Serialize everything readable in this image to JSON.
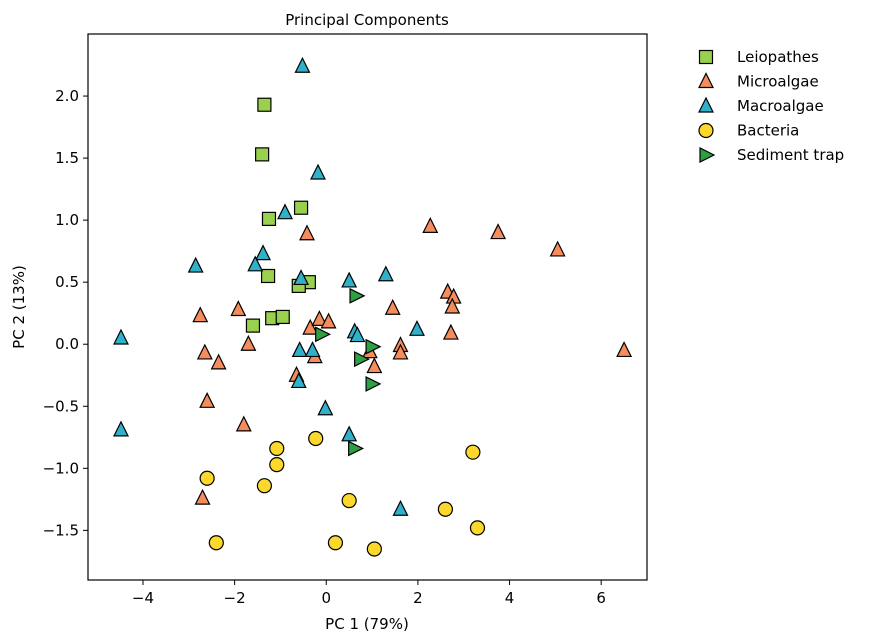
{
  "chart_data": {
    "type": "scatter",
    "title": "Principal Components",
    "xlabel": "PC 1 (79%)",
    "ylabel": "PC 2 (13%)",
    "xlim": [
      -5.2,
      7.0
    ],
    "ylim": [
      -1.9,
      2.5
    ],
    "xticks": [
      -4,
      -2,
      0,
      2,
      4,
      6
    ],
    "xtick_labels": [
      "−4",
      "−2",
      "0",
      "2",
      "4",
      "6"
    ],
    "yticks": [
      -1.5,
      -1.0,
      -0.5,
      0.0,
      0.5,
      1.0,
      1.5,
      2.0
    ],
    "ytick_labels": [
      "−1.5",
      "−1.0",
      "−0.5",
      "0.0",
      "0.5",
      "1.0",
      "1.5",
      "2.0"
    ],
    "grid": false,
    "legend_position": "outside-right-top",
    "series": [
      {
        "name": "Leiopathes",
        "marker": "square",
        "color": "#99d04e",
        "points": [
          [
            -1.35,
            1.93
          ],
          [
            -1.4,
            1.53
          ],
          [
            -1.25,
            1.01
          ],
          [
            -0.55,
            1.1
          ],
          [
            -1.27,
            0.55
          ],
          [
            -0.38,
            0.5
          ],
          [
            -0.6,
            0.47
          ],
          [
            -1.6,
            0.15
          ],
          [
            -1.18,
            0.21
          ],
          [
            -0.95,
            0.22
          ]
        ]
      },
      {
        "name": "Microalgae",
        "marker": "triangle-up",
        "color": "#f58c5c",
        "points": [
          [
            -0.42,
            0.89
          ],
          [
            2.27,
            0.95
          ],
          [
            3.75,
            0.9
          ],
          [
            5.05,
            0.76
          ],
          [
            6.5,
            -0.05
          ],
          [
            -1.92,
            0.28
          ],
          [
            -2.75,
            0.23
          ],
          [
            -1.7,
            0.0
          ],
          [
            -2.65,
            -0.07
          ],
          [
            -2.35,
            -0.15
          ],
          [
            -2.6,
            -0.46
          ],
          [
            -1.8,
            -0.65
          ],
          [
            -2.7,
            -1.24
          ],
          [
            -0.35,
            0.13
          ],
          [
            -0.15,
            0.2
          ],
          [
            0.05,
            0.18
          ],
          [
            -0.25,
            -0.1
          ],
          [
            -0.65,
            -0.25
          ],
          [
            0.95,
            -0.06
          ],
          [
            1.05,
            -0.18
          ],
          [
            1.45,
            0.29
          ],
          [
            1.62,
            -0.01
          ],
          [
            1.62,
            -0.07
          ],
          [
            2.65,
            0.42
          ],
          [
            2.78,
            0.38
          ],
          [
            2.75,
            0.3
          ],
          [
            2.72,
            0.09
          ]
        ]
      },
      {
        "name": "Macroalgae",
        "marker": "triangle-up",
        "color": "#2fb1c9",
        "points": [
          [
            -0.52,
            2.24
          ],
          [
            -0.18,
            1.38
          ],
          [
            -0.9,
            1.06
          ],
          [
            -1.38,
            0.73
          ],
          [
            -1.55,
            0.64
          ],
          [
            -2.85,
            0.63
          ],
          [
            -0.55,
            0.53
          ],
          [
            0.5,
            0.51
          ],
          [
            1.3,
            0.56
          ],
          [
            -4.48,
            0.05
          ],
          [
            -0.58,
            -0.05
          ],
          [
            -0.3,
            -0.05
          ],
          [
            -0.6,
            -0.3
          ],
          [
            -0.02,
            -0.52
          ],
          [
            0.62,
            0.1
          ],
          [
            0.68,
            0.07
          ],
          [
            1.98,
            0.12
          ],
          [
            -4.48,
            -0.69
          ],
          [
            0.5,
            -0.73
          ],
          [
            1.62,
            -1.33
          ]
        ]
      },
      {
        "name": "Bacteria",
        "marker": "circle",
        "color": "#fcd82c",
        "points": [
          [
            -1.08,
            -0.84
          ],
          [
            -0.23,
            -0.76
          ],
          [
            -1.08,
            -0.97
          ],
          [
            -2.6,
            -1.08
          ],
          [
            -1.35,
            -1.14
          ],
          [
            0.5,
            -1.26
          ],
          [
            -2.4,
            -1.6
          ],
          [
            0.2,
            -1.6
          ],
          [
            1.05,
            -1.65
          ],
          [
            2.6,
            -1.33
          ],
          [
            3.2,
            -0.87
          ],
          [
            3.3,
            -1.48
          ]
        ]
      },
      {
        "name": "Sediment trap",
        "marker": "triangle-right",
        "color": "#2ea043",
        "points": [
          [
            0.65,
            0.39
          ],
          [
            -0.1,
            0.08
          ],
          [
            1.0,
            -0.02
          ],
          [
            0.75,
            -0.12
          ],
          [
            1.0,
            -0.32
          ],
          [
            0.62,
            -0.84
          ]
        ]
      }
    ]
  }
}
